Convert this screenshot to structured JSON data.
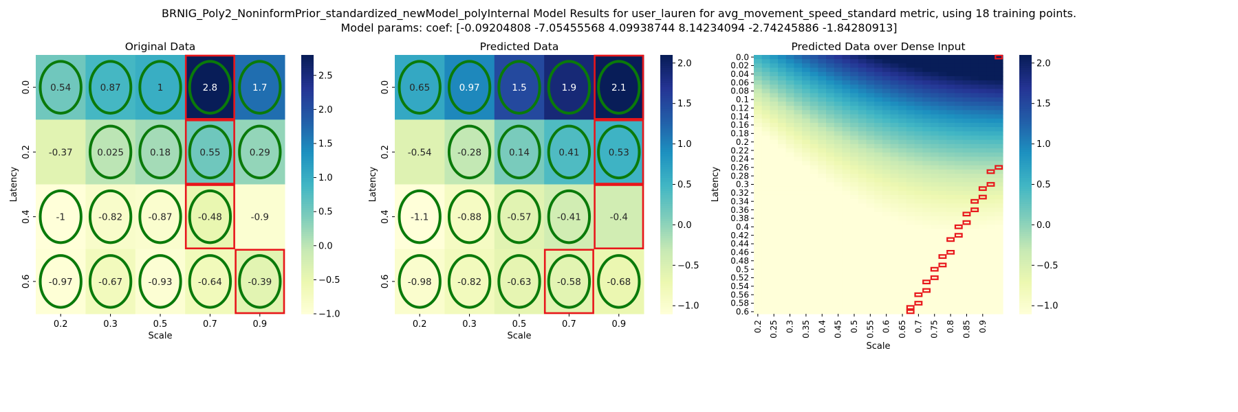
{
  "figure": {
    "title_line1": "BRNIG_Poly2_NoninformPrior_standardized_newModel_polyInternal Model Results for user_lauren for avg_movement_speed_standard metric, using 18 training points.",
    "title_line2": "Model params: coef: [-0.09204808 -7.05455568  4.09938744  8.14234094 -2.74245886 -1.84280913]"
  },
  "colors": {
    "highlight_oval": "#0a7a0a",
    "boundary_box": "#e8161b",
    "colormap": "YlGnBu"
  },
  "chart_data": [
    {
      "type": "heatmap",
      "title": "Original Data",
      "xlabel": "Scale",
      "ylabel": "Latency",
      "x_categories": [
        "0.2",
        "0.3",
        "0.5",
        "0.7",
        "0.9"
      ],
      "y_categories": [
        "0.0",
        "0.2",
        "0.4",
        "0.6"
      ],
      "values": [
        [
          0.54,
          0.87,
          1,
          2.8,
          1.7
        ],
        [
          -0.37,
          0.025,
          0.18,
          0.55,
          0.29
        ],
        [
          -1,
          -0.82,
          -0.87,
          -0.48,
          -0.9
        ],
        [
          -0.97,
          -0.67,
          -0.93,
          -0.64,
          -0.39
        ]
      ],
      "value_labels": [
        [
          "0.54",
          "0.87",
          "1",
          "2.8",
          "1.7"
        ],
        [
          "-0.37",
          "0.025",
          "0.18",
          "0.55",
          "0.29"
        ],
        [
          "-1",
          "-0.82",
          "-0.87",
          "-0.48",
          "-0.9"
        ],
        [
          "-0.97",
          "-0.67",
          "-0.93",
          "-0.64",
          "-0.39"
        ]
      ],
      "highlighted_cells": [
        [
          0,
          0
        ],
        [
          0,
          1
        ],
        [
          0,
          2
        ],
        [
          0,
          3
        ],
        [
          0,
          4
        ],
        [
          1,
          1
        ],
        [
          1,
          2
        ],
        [
          1,
          3
        ],
        [
          1,
          4
        ],
        [
          2,
          0
        ],
        [
          2,
          1
        ],
        [
          2,
          2
        ],
        [
          2,
          3
        ],
        [
          3,
          0
        ],
        [
          3,
          1
        ],
        [
          3,
          2
        ],
        [
          3,
          3
        ],
        [
          3,
          4
        ]
      ],
      "boundary_cells": [
        [
          0,
          3
        ],
        [
          1,
          3
        ],
        [
          2,
          3
        ],
        [
          3,
          4
        ]
      ],
      "colorbar": {
        "vmin": -1.0,
        "vmax": 2.8,
        "ticks": [
          -1.0,
          -0.5,
          0.0,
          0.5,
          1.0,
          1.5,
          2.0,
          2.5
        ]
      }
    },
    {
      "type": "heatmap",
      "title": "Predicted Data",
      "xlabel": "Scale",
      "ylabel": "Latency",
      "x_categories": [
        "0.2",
        "0.3",
        "0.5",
        "0.7",
        "0.9"
      ],
      "y_categories": [
        "0.0",
        "0.2",
        "0.4",
        "0.6"
      ],
      "values": [
        [
          0.65,
          0.97,
          1.5,
          1.9,
          2.1
        ],
        [
          -0.54,
          -0.28,
          0.14,
          0.41,
          0.53
        ],
        [
          -1.1,
          -0.88,
          -0.57,
          -0.41,
          -0.4
        ],
        [
          -0.98,
          -0.82,
          -0.63,
          -0.58,
          -0.68
        ]
      ],
      "value_labels": [
        [
          "0.65",
          "0.97",
          "1.5",
          "1.9",
          "2.1"
        ],
        [
          "-0.54",
          "-0.28",
          "0.14",
          "0.41",
          "0.53"
        ],
        [
          "-1.1",
          "-0.88",
          "-0.57",
          "-0.41",
          "-0.4"
        ],
        [
          "-0.98",
          "-0.82",
          "-0.63",
          "-0.58",
          "-0.68"
        ]
      ],
      "highlighted_cells": [
        [
          0,
          0
        ],
        [
          0,
          1
        ],
        [
          0,
          2
        ],
        [
          0,
          3
        ],
        [
          0,
          4
        ],
        [
          1,
          1
        ],
        [
          1,
          2
        ],
        [
          1,
          3
        ],
        [
          1,
          4
        ],
        [
          2,
          0
        ],
        [
          2,
          1
        ],
        [
          2,
          2
        ],
        [
          2,
          3
        ],
        [
          3,
          0
        ],
        [
          3,
          1
        ],
        [
          3,
          2
        ],
        [
          3,
          3
        ],
        [
          3,
          4
        ]
      ],
      "boundary_cells": [
        [
          0,
          4
        ],
        [
          1,
          4
        ],
        [
          2,
          4
        ],
        [
          3,
          3
        ]
      ],
      "colorbar": {
        "vmin": -1.1,
        "vmax": 2.1,
        "ticks": [
          -1.0,
          -0.5,
          0.0,
          0.5,
          1.0,
          1.5,
          2.0
        ]
      }
    },
    {
      "type": "heatmap",
      "title": "Predicted Data over Dense Input",
      "xlabel": "Scale",
      "ylabel": "Latency",
      "x_tick_labels": [
        "0.2",
        "0.25",
        "0.3",
        "0.35",
        "0.4",
        "0.45",
        "0.5",
        "0.55",
        "0.6",
        "0.65",
        "0.7",
        "0.75",
        "0.8",
        "0.85",
        "0.9"
      ],
      "y_tick_labels": [
        "0.0",
        "0.02",
        "0.04",
        "0.06",
        "0.08",
        "0.1",
        "0.12",
        "0.14",
        "0.16",
        "0.18",
        "0.2",
        "0.22",
        "0.24",
        "0.26",
        "0.28",
        "0.3",
        "0.32",
        "0.34",
        "0.36",
        "0.38",
        "0.4",
        "0.42",
        "0.44",
        "0.46",
        "0.48",
        "0.5",
        "0.52",
        "0.54",
        "0.56",
        "0.58",
        "0.6"
      ],
      "x_range": [
        0.2,
        0.95
      ],
      "y_range": [
        0.0,
        0.6
      ],
      "grid_step_x": 0.025,
      "grid_step_y": 0.01,
      "model_coef": [
        -0.09204808,
        -7.05455568,
        4.09938744,
        8.14234094,
        -2.74245886,
        -1.84280913
      ],
      "boundary_path": [
        [
          0.0,
          0.95
        ],
        [
          0.26,
          0.95
        ],
        [
          0.27,
          0.925
        ],
        [
          0.3,
          0.925
        ],
        [
          0.31,
          0.9
        ],
        [
          0.33,
          0.9
        ],
        [
          0.34,
          0.875
        ],
        [
          0.36,
          0.875
        ],
        [
          0.37,
          0.85
        ],
        [
          0.39,
          0.85
        ],
        [
          0.4,
          0.825
        ],
        [
          0.42,
          0.825
        ],
        [
          0.43,
          0.8
        ],
        [
          0.46,
          0.8
        ],
        [
          0.47,
          0.775
        ],
        [
          0.49,
          0.775
        ],
        [
          0.5,
          0.75
        ],
        [
          0.52,
          0.75
        ],
        [
          0.53,
          0.725
        ],
        [
          0.55,
          0.725
        ],
        [
          0.56,
          0.7
        ],
        [
          0.58,
          0.7
        ],
        [
          0.59,
          0.675
        ],
        [
          0.6,
          0.675
        ]
      ],
      "colorbar": {
        "vmin": -1.1,
        "vmax": 2.1,
        "ticks": [
          -1.0,
          -0.5,
          0.0,
          0.5,
          1.0,
          1.5,
          2.0
        ]
      }
    }
  ]
}
